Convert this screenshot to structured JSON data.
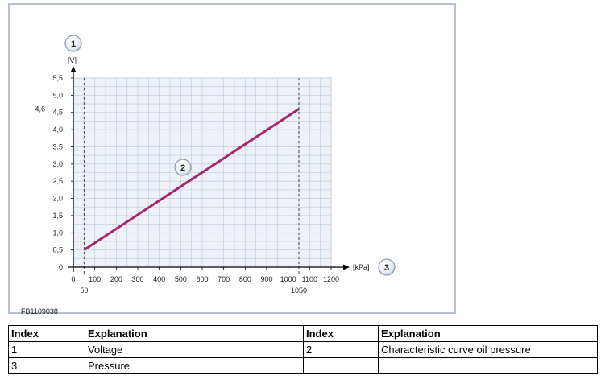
{
  "chart_data": {
    "type": "line",
    "ylabel": "[V]",
    "xlabel": "[kPa]",
    "xlim": [
      0,
      1200
    ],
    "ylim": [
      0,
      5.5
    ],
    "x_ticks": [
      "0",
      "100",
      "200",
      "300",
      "400",
      "500",
      "600",
      "700",
      "800",
      "900",
      "1000",
      "1100",
      "1200"
    ],
    "y_ticks": [
      "0",
      "0,5",
      "1,0",
      "1,5",
      "2,0",
      "2,5",
      "3,0",
      "3,5",
      "4,0",
      "4,5",
      "5,0",
      "5,5"
    ],
    "x_markers": [
      {
        "value": 50,
        "label": "50"
      },
      {
        "value": 1050,
        "label": "1050"
      }
    ],
    "y_markers": [
      {
        "value": 4.6,
        "label": "4,6"
      }
    ],
    "series": [
      {
        "x": [
          50,
          1050
        ],
        "y": [
          0.5,
          4.6
        ]
      }
    ],
    "grid": true,
    "line_color": "#a3286e",
    "callouts": {
      "y_axis": "1",
      "curve": "2",
      "x_axis": "3"
    },
    "figure_code": "FB1109038"
  },
  "legend_table": {
    "headers": [
      "Index",
      "Explanation",
      "Index",
      "Explanation"
    ],
    "rows": [
      [
        "1",
        "Voltage",
        "2",
        "Characteristic curve oil pressure"
      ],
      [
        "3",
        "Pressure",
        "",
        ""
      ]
    ]
  }
}
